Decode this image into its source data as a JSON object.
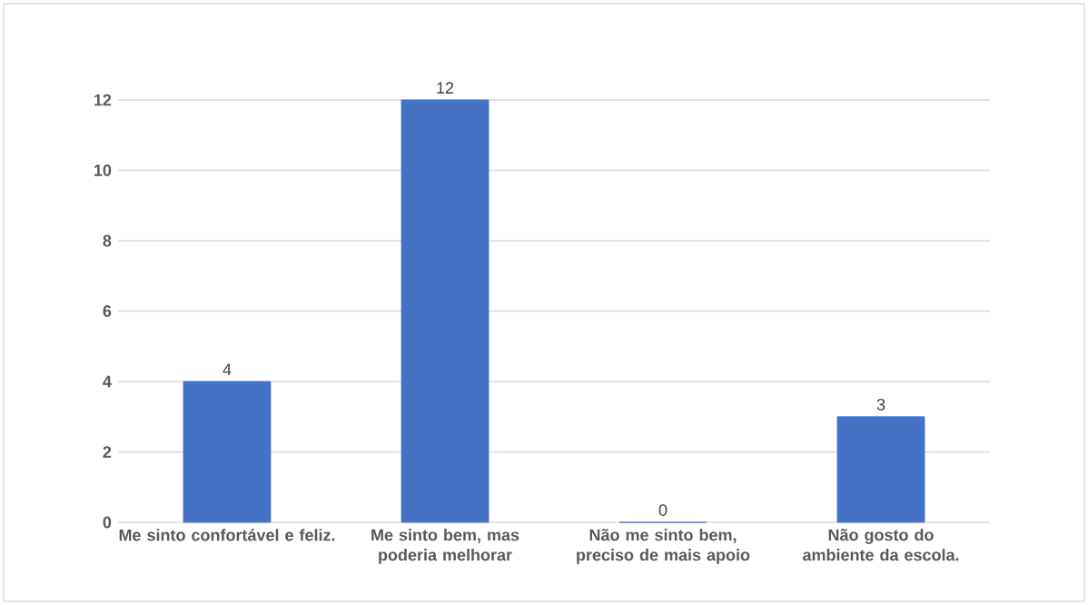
{
  "chart_data": {
    "type": "bar",
    "categories": [
      "Me sinto confortável e feliz.",
      "Me sinto bem, mas poderia melhorar",
      "Não me sinto bem, preciso de mais apoio",
      "Não gosto do ambiente da escola."
    ],
    "values": [
      4,
      12,
      0,
      3
    ],
    "color": "#4472c4",
    "ylim": [
      0,
      12
    ],
    "yticks": [
      0,
      2,
      4,
      6,
      8,
      10,
      12
    ],
    "grid": "y",
    "data_labels": true
  }
}
